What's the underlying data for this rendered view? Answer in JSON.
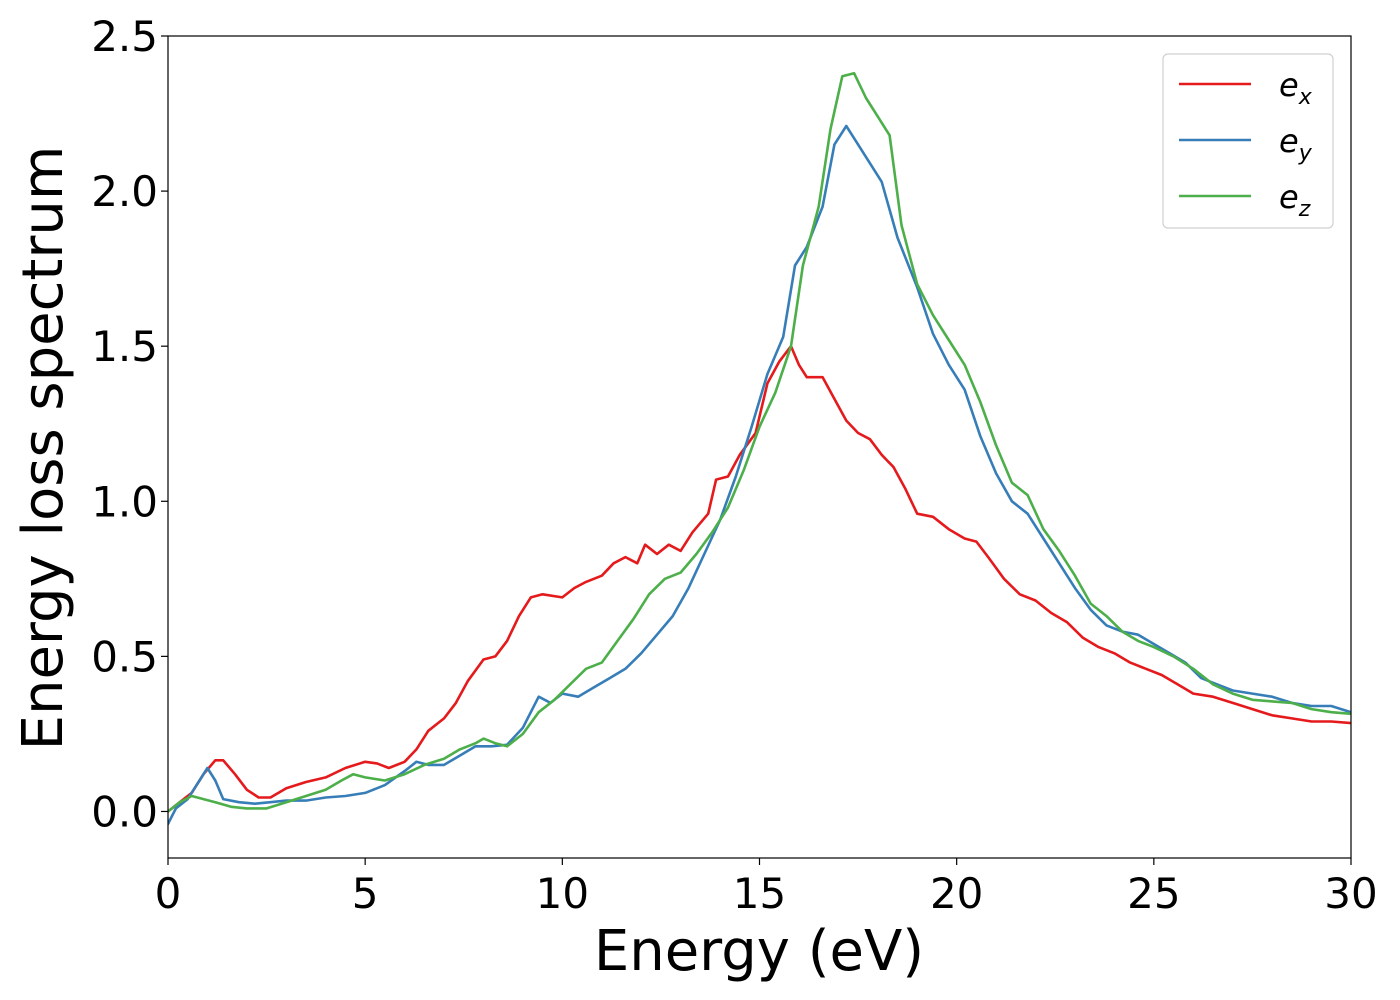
{
  "chart_data": {
    "type": "line",
    "title": "",
    "xlabel": "Energy (eV)",
    "ylabel": "Energy loss spectrum",
    "xlim": [
      0,
      30
    ],
    "ylim": [
      -0.15,
      2.5
    ],
    "xticks": [
      0,
      5,
      10,
      15,
      20,
      25,
      30
    ],
    "xtick_labels": [
      "0",
      "5",
      "10",
      "15",
      "20",
      "25",
      "30"
    ],
    "yticks": [
      0.0,
      0.5,
      1.0,
      1.5,
      2.0,
      2.5
    ],
    "ytick_labels": [
      "0.0",
      "0.5",
      "1.0",
      "1.5",
      "2.0",
      "2.5"
    ],
    "grid": false,
    "legend_position": "top-right",
    "series": [
      {
        "name": "e_x",
        "label_main": "e",
        "label_sub": "x",
        "color": "#e41a1c",
        "points": [
          [
            0,
            0.0
          ],
          [
            0.3,
            0.03
          ],
          [
            0.6,
            0.06
          ],
          [
            0.9,
            0.12
          ],
          [
            1.2,
            0.165
          ],
          [
            1.4,
            0.165
          ],
          [
            1.7,
            0.12
          ],
          [
            2.0,
            0.07
          ],
          [
            2.3,
            0.045
          ],
          [
            2.6,
            0.045
          ],
          [
            3.0,
            0.075
          ],
          [
            3.5,
            0.095
          ],
          [
            4.0,
            0.11
          ],
          [
            4.5,
            0.14
          ],
          [
            5.0,
            0.16
          ],
          [
            5.3,
            0.155
          ],
          [
            5.6,
            0.14
          ],
          [
            6.0,
            0.16
          ],
          [
            6.3,
            0.2
          ],
          [
            6.6,
            0.26
          ],
          [
            7.0,
            0.3
          ],
          [
            7.3,
            0.35
          ],
          [
            7.6,
            0.42
          ],
          [
            8.0,
            0.49
          ],
          [
            8.3,
            0.5
          ],
          [
            8.6,
            0.55
          ],
          [
            8.9,
            0.63
          ],
          [
            9.2,
            0.69
          ],
          [
            9.5,
            0.7
          ],
          [
            10.0,
            0.69
          ],
          [
            10.3,
            0.72
          ],
          [
            10.6,
            0.74
          ],
          [
            11.0,
            0.76
          ],
          [
            11.3,
            0.8
          ],
          [
            11.6,
            0.82
          ],
          [
            11.9,
            0.8
          ],
          [
            12.1,
            0.86
          ],
          [
            12.4,
            0.83
          ],
          [
            12.7,
            0.86
          ],
          [
            13.0,
            0.84
          ],
          [
            13.3,
            0.9
          ],
          [
            13.7,
            0.96
          ],
          [
            13.9,
            1.07
          ],
          [
            14.2,
            1.08
          ],
          [
            14.5,
            1.15
          ],
          [
            14.9,
            1.22
          ],
          [
            15.2,
            1.38
          ],
          [
            15.5,
            1.45
          ],
          [
            15.8,
            1.5
          ],
          [
            16.0,
            1.44
          ],
          [
            16.2,
            1.4
          ],
          [
            16.6,
            1.4
          ],
          [
            16.9,
            1.33
          ],
          [
            17.2,
            1.26
          ],
          [
            17.5,
            1.22
          ],
          [
            17.8,
            1.2
          ],
          [
            18.1,
            1.15
          ],
          [
            18.4,
            1.11
          ],
          [
            18.7,
            1.04
          ],
          [
            19.0,
            0.96
          ],
          [
            19.4,
            0.95
          ],
          [
            19.8,
            0.91
          ],
          [
            20.2,
            0.88
          ],
          [
            20.5,
            0.87
          ],
          [
            20.8,
            0.82
          ],
          [
            21.2,
            0.75
          ],
          [
            21.6,
            0.7
          ],
          [
            22.0,
            0.68
          ],
          [
            22.4,
            0.64
          ],
          [
            22.8,
            0.61
          ],
          [
            23.2,
            0.56
          ],
          [
            23.6,
            0.53
          ],
          [
            24.0,
            0.51
          ],
          [
            24.4,
            0.48
          ],
          [
            24.8,
            0.46
          ],
          [
            25.2,
            0.44
          ],
          [
            25.6,
            0.41
          ],
          [
            26.0,
            0.38
          ],
          [
            26.5,
            0.37
          ],
          [
            27.0,
            0.35
          ],
          [
            27.5,
            0.33
          ],
          [
            28.0,
            0.31
          ],
          [
            28.5,
            0.3
          ],
          [
            29.0,
            0.29
          ],
          [
            29.5,
            0.29
          ],
          [
            30.0,
            0.285
          ]
        ]
      },
      {
        "name": "e_y",
        "label_main": "e",
        "label_sub": "y",
        "color": "#377eb8",
        "points": [
          [
            0,
            -0.04
          ],
          [
            0.2,
            0.01
          ],
          [
            0.5,
            0.04
          ],
          [
            0.8,
            0.1
          ],
          [
            1.0,
            0.14
          ],
          [
            1.2,
            0.1
          ],
          [
            1.4,
            0.04
          ],
          [
            1.8,
            0.03
          ],
          [
            2.2,
            0.025
          ],
          [
            2.6,
            0.03
          ],
          [
            3.0,
            0.035
          ],
          [
            3.5,
            0.035
          ],
          [
            4.0,
            0.045
          ],
          [
            4.5,
            0.05
          ],
          [
            5.0,
            0.06
          ],
          [
            5.5,
            0.085
          ],
          [
            6.0,
            0.13
          ],
          [
            6.3,
            0.16
          ],
          [
            6.6,
            0.15
          ],
          [
            7.0,
            0.15
          ],
          [
            7.4,
            0.18
          ],
          [
            7.8,
            0.21
          ],
          [
            8.2,
            0.21
          ],
          [
            8.6,
            0.215
          ],
          [
            9.0,
            0.27
          ],
          [
            9.4,
            0.37
          ],
          [
            9.7,
            0.35
          ],
          [
            10.0,
            0.38
          ],
          [
            10.4,
            0.37
          ],
          [
            10.8,
            0.4
          ],
          [
            11.2,
            0.43
          ],
          [
            11.6,
            0.46
          ],
          [
            12.0,
            0.51
          ],
          [
            12.4,
            0.57
          ],
          [
            12.8,
            0.63
          ],
          [
            13.2,
            0.72
          ],
          [
            13.6,
            0.83
          ],
          [
            14.0,
            0.94
          ],
          [
            14.4,
            1.08
          ],
          [
            14.8,
            1.24
          ],
          [
            15.2,
            1.41
          ],
          [
            15.6,
            1.53
          ],
          [
            15.9,
            1.76
          ],
          [
            16.2,
            1.82
          ],
          [
            16.6,
            1.95
          ],
          [
            16.9,
            2.15
          ],
          [
            17.2,
            2.21
          ],
          [
            17.5,
            2.15
          ],
          [
            17.8,
            2.09
          ],
          [
            18.1,
            2.03
          ],
          [
            18.5,
            1.85
          ],
          [
            19.0,
            1.69
          ],
          [
            19.4,
            1.54
          ],
          [
            19.8,
            1.44
          ],
          [
            20.2,
            1.36
          ],
          [
            20.6,
            1.21
          ],
          [
            21.0,
            1.09
          ],
          [
            21.4,
            1.0
          ],
          [
            21.8,
            0.96
          ],
          [
            22.2,
            0.88
          ],
          [
            22.6,
            0.8
          ],
          [
            23.0,
            0.72
          ],
          [
            23.4,
            0.65
          ],
          [
            23.8,
            0.6
          ],
          [
            24.2,
            0.58
          ],
          [
            24.6,
            0.57
          ],
          [
            25.0,
            0.54
          ],
          [
            25.4,
            0.51
          ],
          [
            25.8,
            0.48
          ],
          [
            26.2,
            0.43
          ],
          [
            26.6,
            0.41
          ],
          [
            27.0,
            0.39
          ],
          [
            27.5,
            0.38
          ],
          [
            28.0,
            0.37
          ],
          [
            28.5,
            0.35
          ],
          [
            29.0,
            0.34
          ],
          [
            29.5,
            0.34
          ],
          [
            30.0,
            0.32
          ]
        ]
      },
      {
        "name": "e_z",
        "label_main": "e",
        "label_sub": "z",
        "color": "#4daf4a",
        "points": [
          [
            0,
            0.0
          ],
          [
            0.3,
            0.03
          ],
          [
            0.6,
            0.05
          ],
          [
            0.9,
            0.04
          ],
          [
            1.2,
            0.03
          ],
          [
            1.6,
            0.015
          ],
          [
            2.0,
            0.01
          ],
          [
            2.5,
            0.01
          ],
          [
            3.0,
            0.03
          ],
          [
            3.5,
            0.05
          ],
          [
            4.0,
            0.07
          ],
          [
            4.4,
            0.1
          ],
          [
            4.7,
            0.12
          ],
          [
            5.0,
            0.11
          ],
          [
            5.5,
            0.1
          ],
          [
            6.0,
            0.12
          ],
          [
            6.5,
            0.15
          ],
          [
            7.0,
            0.17
          ],
          [
            7.4,
            0.2
          ],
          [
            7.8,
            0.22
          ],
          [
            8.0,
            0.235
          ],
          [
            8.3,
            0.22
          ],
          [
            8.6,
            0.21
          ],
          [
            9.0,
            0.25
          ],
          [
            9.4,
            0.32
          ],
          [
            9.8,
            0.36
          ],
          [
            10.2,
            0.41
          ],
          [
            10.6,
            0.46
          ],
          [
            11.0,
            0.48
          ],
          [
            11.4,
            0.55
          ],
          [
            11.8,
            0.62
          ],
          [
            12.2,
            0.7
          ],
          [
            12.6,
            0.75
          ],
          [
            13.0,
            0.77
          ],
          [
            13.4,
            0.83
          ],
          [
            13.8,
            0.9
          ],
          [
            14.2,
            0.98
          ],
          [
            14.6,
            1.1
          ],
          [
            15.0,
            1.24
          ],
          [
            15.4,
            1.35
          ],
          [
            15.8,
            1.5
          ],
          [
            16.1,
            1.76
          ],
          [
            16.5,
            1.95
          ],
          [
            16.8,
            2.2
          ],
          [
            17.1,
            2.37
          ],
          [
            17.4,
            2.38
          ],
          [
            17.7,
            2.3
          ],
          [
            18.0,
            2.24
          ],
          [
            18.3,
            2.18
          ],
          [
            18.6,
            1.89
          ],
          [
            19.0,
            1.7
          ],
          [
            19.4,
            1.6
          ],
          [
            19.8,
            1.52
          ],
          [
            20.2,
            1.44
          ],
          [
            20.6,
            1.32
          ],
          [
            21.0,
            1.18
          ],
          [
            21.4,
            1.06
          ],
          [
            21.8,
            1.02
          ],
          [
            22.2,
            0.91
          ],
          [
            22.6,
            0.84
          ],
          [
            23.0,
            0.76
          ],
          [
            23.4,
            0.67
          ],
          [
            23.8,
            0.63
          ],
          [
            24.2,
            0.58
          ],
          [
            24.6,
            0.55
          ],
          [
            25.0,
            0.53
          ],
          [
            25.5,
            0.5
          ],
          [
            26.0,
            0.46
          ],
          [
            26.5,
            0.41
          ],
          [
            27.0,
            0.38
          ],
          [
            27.5,
            0.36
          ],
          [
            28.0,
            0.355
          ],
          [
            28.5,
            0.35
          ],
          [
            29.0,
            0.33
          ],
          [
            29.5,
            0.32
          ],
          [
            30.0,
            0.315
          ]
        ]
      }
    ]
  }
}
